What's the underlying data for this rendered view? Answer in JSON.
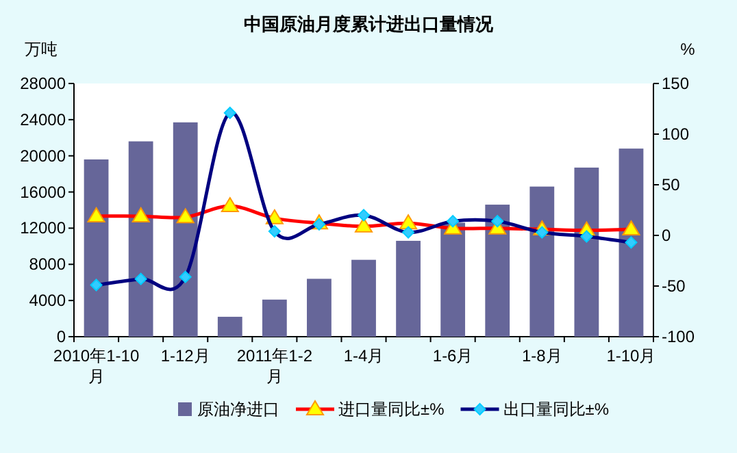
{
  "chart_data": {
    "type": "bar",
    "title": "中国原油月度累计进出口量情况",
    "ylabel": "万吨",
    "y2label": "%",
    "categories": [
      "2010年1-10月",
      null,
      "1-12月",
      null,
      "2011年1-2月",
      null,
      "1-4月",
      null,
      "1-6月",
      null,
      "1-8月",
      null,
      "1-10月"
    ],
    "series": [
      {
        "name": "原油净进口",
        "color": "#666699",
        "values": [
          19600,
          21600,
          23700,
          2200,
          4100,
          6400,
          8500,
          10600,
          12600,
          14600,
          16600,
          18700,
          20800
        ]
      },
      {
        "name": "进口量同比±%",
        "type": "line",
        "axis": "y2",
        "color": "#ff0000",
        "marker": "triangle",
        "values": [
          19,
          19,
          18,
          29,
          17,
          12,
          9,
          12,
          7,
          7,
          6,
          5,
          6
        ]
      },
      {
        "name": "出口量同比±%",
        "type": "line",
        "axis": "y2",
        "color": "#000080",
        "marker": "diamond",
        "values": [
          -49,
          -43,
          -41,
          121,
          4,
          11,
          20,
          3,
          14,
          14,
          3,
          -1,
          -7
        ]
      }
    ],
    "ylim": [
      0,
      28000
    ],
    "yticks": [
      0,
      4000,
      8000,
      12000,
      16000,
      20000,
      24000,
      28000
    ],
    "y2lim": [
      -100,
      150
    ],
    "y2ticks": [
      -100,
      -50,
      0,
      50,
      100,
      150
    ],
    "legend": "bottom",
    "grid": false
  }
}
